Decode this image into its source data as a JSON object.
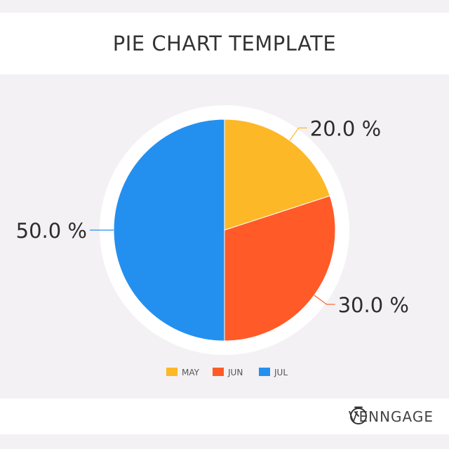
{
  "chart_data": {
    "type": "pie",
    "title": "PIE CHART TEMPLATE",
    "categories": [
      "MAY",
      "JUN",
      "JUL"
    ],
    "values": [
      20.0,
      30.0,
      50.0
    ],
    "data_labels": [
      "20.0 %",
      "30.0 %",
      "50.0 %"
    ],
    "colors": [
      "#fdb827",
      "#ff5a27",
      "#2390f0"
    ],
    "legend_position": "bottom-center"
  },
  "footer": {
    "brand": "VENNGAGE",
    "logo_icon": "timer-icon"
  }
}
